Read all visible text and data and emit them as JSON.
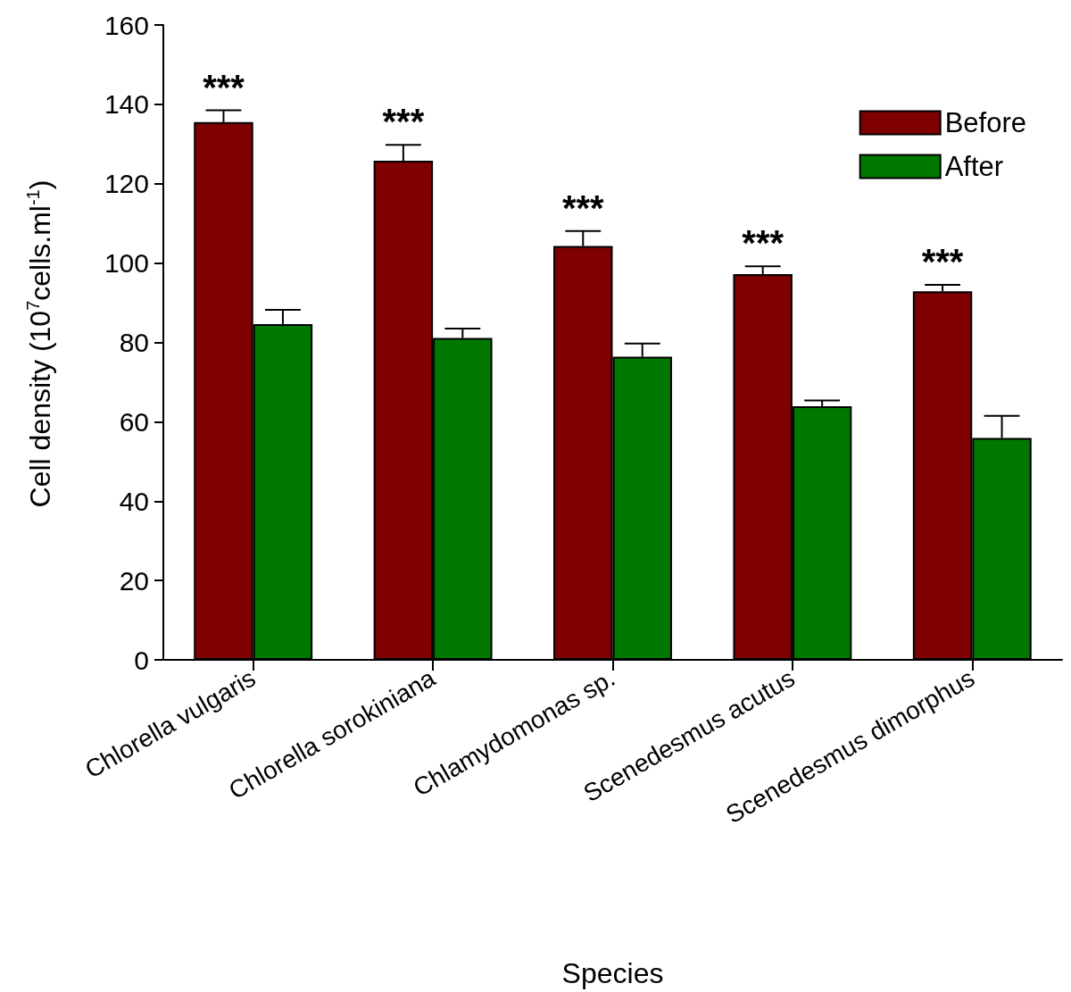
{
  "chart_data": {
    "type": "bar",
    "xlabel": "Species",
    "ylabel": "Cell density (10$^{7}$cells.ml$^{-1}$)",
    "categories": [
      "Chlorella vulgaris",
      "Chlorella sorokiniana",
      "Chlamydomonas sp.",
      "Scenedesmus acutus",
      "Scenedesmus dimorphus"
    ],
    "series": [
      {
        "name": "Before",
        "color": "#7f0000",
        "values": [
          135.5,
          125.8,
          104.3,
          97.2,
          92.9
        ],
        "errors": [
          3,
          4,
          3.8,
          2,
          1.6
        ]
      },
      {
        "name": "After",
        "color": "#007800",
        "values": [
          84.6,
          81.1,
          76.4,
          63.9,
          55.9
        ],
        "errors": [
          3.6,
          2.4,
          3.3,
          1.5,
          5.6
        ]
      }
    ],
    "ylim": [
      0,
      160
    ],
    "yticks": [
      0,
      20,
      40,
      60,
      80,
      100,
      120,
      140,
      160
    ],
    "grid": false,
    "legend": "top right",
    "annotations": [
      "***",
      "***",
      "***",
      "***",
      "***"
    ]
  }
}
